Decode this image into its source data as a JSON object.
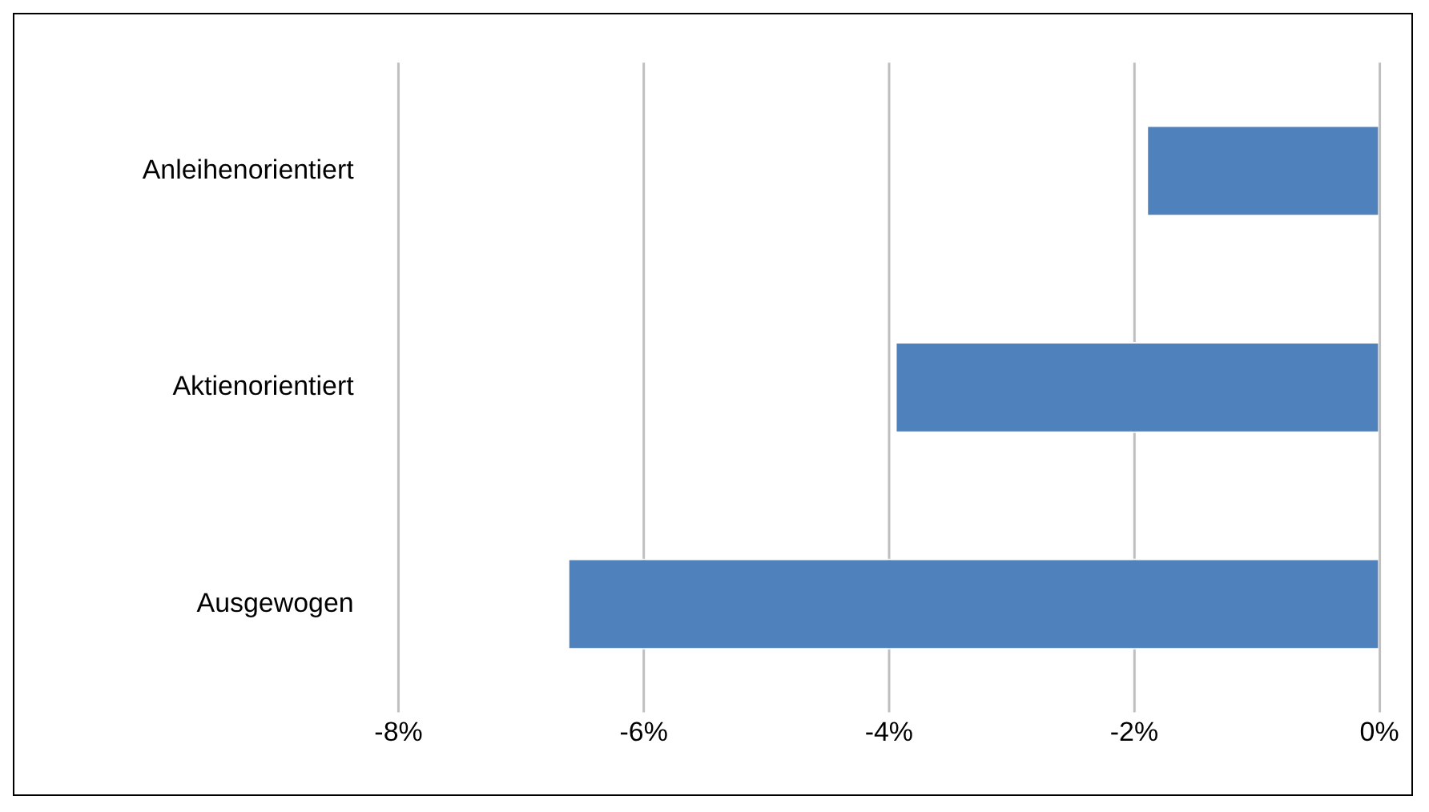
{
  "chart_data": {
    "type": "bar",
    "orientation": "horizontal",
    "categories": [
      "Anleihenorientiert",
      "Aktienorientiert",
      "Ausgewogen"
    ],
    "values": [
      -1.9,
      -3.95,
      -6.62
    ],
    "color": "#4f81bd",
    "xlim": [
      -8,
      0
    ],
    "xticks": [
      {
        "value": -8,
        "label": "-8%"
      },
      {
        "value": -6,
        "label": "-6%"
      },
      {
        "value": -4,
        "label": "-4%"
      },
      {
        "value": -2,
        "label": "-2%"
      },
      {
        "value": 0,
        "label": "0%"
      }
    ],
    "grid": "x",
    "legend": false
  }
}
